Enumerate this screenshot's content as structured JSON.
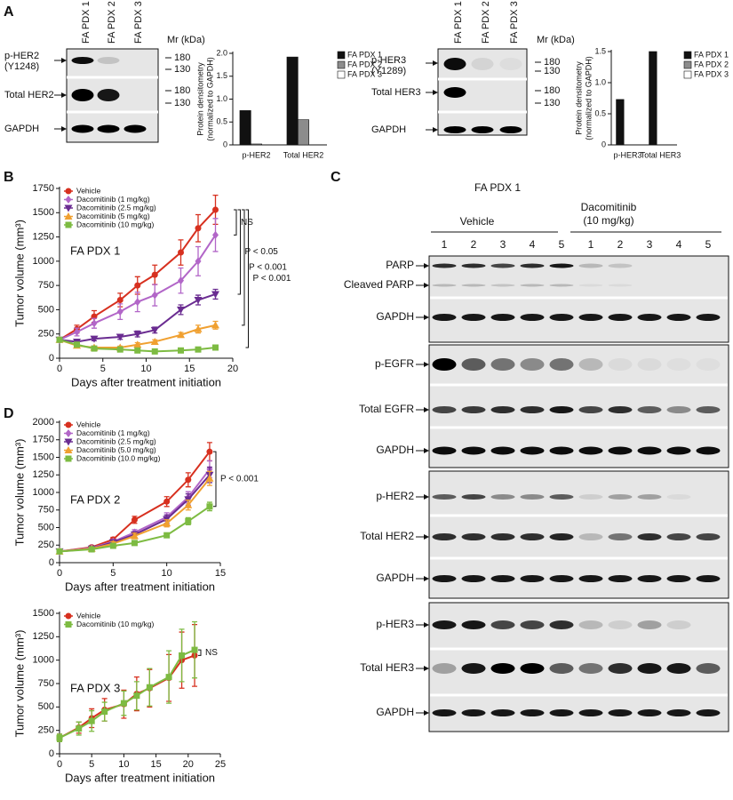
{
  "panel_labels": [
    "A",
    "B",
    "C",
    "D"
  ],
  "blots": {
    "a_left": {
      "lanes": [
        "FA PDX 1",
        "FA PDX 2",
        "FA PDX 3"
      ],
      "mr": "Mr (kDa)",
      "rows": [
        {
          "label": [
            "p-HER2",
            "(Y1248)"
          ],
          "markers": [
            180,
            130
          ]
        },
        {
          "label": [
            "Total HER2"
          ],
          "markers": [
            180,
            130
          ]
        },
        {
          "label": [
            "GAPDH"
          ]
        }
      ]
    },
    "a_right": {
      "lanes": [
        "FA PDX 1",
        "FA PDX 2",
        "FA PDX 3"
      ],
      "mr": "Mr (kDa)",
      "rows": [
        {
          "label": [
            "p-HER3",
            "(Y1289)"
          ],
          "markers": [
            180,
            130
          ]
        },
        {
          "label": [
            "Total HER3"
          ],
          "markers": [
            180,
            130
          ]
        },
        {
          "label": [
            "GAPDH"
          ]
        }
      ]
    },
    "c": {
      "title": "FA PDX 1",
      "groups": [
        {
          "label": [
            "Vehicle"
          ],
          "lanes": [
            1,
            2,
            3,
            4,
            5
          ]
        },
        {
          "label": [
            "Dacomitinib",
            "(10 mg/kg)"
          ],
          "lanes": [
            1,
            2,
            3,
            4,
            5
          ]
        }
      ],
      "rows": [
        "PARP",
        "Cleaved PARP",
        "GAPDH",
        "p-EGFR",
        "Total EGFR",
        "GAPDH",
        "p-HER2",
        "Total HER2",
        "GAPDH",
        "p-HER3",
        "Total HER3",
        "GAPDH"
      ]
    }
  },
  "chart_data": [
    {
      "type": "bar",
      "ylabel": [
        "Protein densitometry",
        "(normalized to GAPDH)"
      ],
      "categories": [
        "p-HER2",
        "Total HER2"
      ],
      "series": [
        {
          "name": "FA PDX 1",
          "color": "#111111",
          "values": [
            0.75,
            1.92
          ]
        },
        {
          "name": "FA PDX 2",
          "color": "#8c8c8c",
          "values": [
            0.02,
            0.55
          ]
        },
        {
          "name": "FA PDX 3",
          "color": "#ffffff",
          "values": [
            0,
            0
          ]
        }
      ],
      "ylim": [
        0,
        2
      ],
      "yticks": [
        0,
        0.5,
        {
          "value": 1,
          "label": "1.0"
        },
        1.5,
        {
          "value": 2,
          "label": "2.0"
        }
      ]
    },
    {
      "type": "bar",
      "ylabel": [
        "Protein densitometry",
        "(normalized to GAPDH)"
      ],
      "categories": [
        "p-HER3",
        "Total HER3"
      ],
      "series": [
        {
          "name": "FA PDX 1",
          "color": "#111111",
          "values": [
            0.73,
            1.5
          ]
        },
        {
          "name": "FA PDX 2",
          "color": "#8c8c8c",
          "values": [
            0,
            0
          ]
        },
        {
          "name": "FA PDX 3",
          "color": "#ffffff",
          "values": [
            0,
            0
          ]
        }
      ],
      "ylim": [
        0,
        1.5
      ],
      "yticks": [
        0,
        0.5,
        {
          "value": 1,
          "label": "1.0"
        },
        1.5
      ]
    },
    {
      "type": "line",
      "title": "FA PDX 1",
      "xlabel": "Days after treatment initiation",
      "ylabel": "Tumor volume (mm³)",
      "x": [
        0,
        2,
        4,
        7,
        9,
        11,
        14,
        16,
        18
      ],
      "series": [
        {
          "name": "Vehicle",
          "color": "#d7301f",
          "marker": "circle",
          "values": [
            190,
            300,
            430,
            600,
            750,
            860,
            1090,
            1340,
            1530
          ],
          "errors": [
            20,
            40,
            60,
            70,
            90,
            100,
            130,
            140,
            150
          ]
        },
        {
          "name": "Dacomitinib (1 mg/kg)",
          "color": "#b266c8",
          "marker": "diamond",
          "values": [
            190,
            270,
            360,
            480,
            580,
            650,
            800,
            1000,
            1270
          ],
          "errors": [
            20,
            40,
            50,
            80,
            100,
            110,
            130,
            150,
            170
          ]
        },
        {
          "name": "Dacomitinib (2.5 mg/kg)",
          "color": "#6a2c91",
          "marker": "triangle-down",
          "values": [
            190,
            170,
            200,
            220,
            250,
            290,
            500,
            600,
            660
          ],
          "errors": [
            15,
            20,
            20,
            25,
            30,
            30,
            50,
            50,
            50
          ]
        },
        {
          "name": "Dacomitinib (5 mg/kg)",
          "color": "#f0a030",
          "marker": "triangle-up",
          "values": [
            190,
            130,
            110,
            110,
            140,
            170,
            240,
            300,
            340
          ],
          "errors": [
            15,
            15,
            15,
            15,
            20,
            20,
            25,
            40,
            40
          ]
        },
        {
          "name": "Dacomitinib (10 mg/kg)",
          "color": "#7dbb42",
          "marker": "square",
          "values": [
            190,
            140,
            100,
            90,
            80,
            70,
            80,
            90,
            110
          ],
          "errors": [
            15,
            15,
            10,
            10,
            10,
            10,
            10,
            10,
            15
          ]
        }
      ],
      "annotations": [
        "NS",
        "P < 0.05",
        "P < 0.001",
        "P < 0.001"
      ],
      "xlim": [
        0,
        20
      ],
      "xticks": [
        0,
        5,
        10,
        15,
        20
      ],
      "ylim": [
        0,
        1750
      ],
      "yticks": [
        0,
        250,
        500,
        750,
        1000,
        1250,
        1500,
        1750
      ]
    },
    {
      "type": "line",
      "title": "FA PDX 2",
      "xlabel": "Days after treatment initiation",
      "ylabel": "Tumor volume (mm³)",
      "x": [
        0,
        3,
        5,
        7,
        10,
        12,
        14
      ],
      "series": [
        {
          "name": "Vehicle",
          "color": "#d7301f",
          "marker": "circle",
          "values": [
            160,
            220,
            330,
            610,
            870,
            1180,
            1580
          ],
          "errors": [
            10,
            20,
            30,
            50,
            70,
            100,
            130
          ]
        },
        {
          "name": "Dacomitinib (1 mg/kg)",
          "color": "#b266c8",
          "marker": "diamond",
          "values": [
            160,
            210,
            300,
            430,
            650,
            930,
            1330
          ],
          "errors": [
            10,
            20,
            30,
            40,
            60,
            80,
            120
          ]
        },
        {
          "name": "Dacomitinib (2.5 mg/kg)",
          "color": "#6a2c91",
          "marker": "triangle-down",
          "values": [
            160,
            200,
            290,
            400,
            620,
            900,
            1250
          ],
          "errors": [
            10,
            20,
            30,
            40,
            60,
            80,
            110
          ]
        },
        {
          "name": "Dacomitinib (5.0 mg/kg)",
          "color": "#f0a030",
          "marker": "triangle-up",
          "values": [
            160,
            200,
            270,
            380,
            560,
            820,
            1200
          ],
          "errors": [
            10,
            20,
            30,
            40,
            50,
            70,
            100
          ]
        },
        {
          "name": "Dacomitinib (10.0 mg/kg)",
          "color": "#7dbb42",
          "marker": "square",
          "values": [
            160,
            190,
            240,
            280,
            390,
            590,
            800
          ],
          "errors": [
            10,
            15,
            20,
            20,
            30,
            50,
            60
          ]
        }
      ],
      "annotations": [
        "P < 0.001"
      ],
      "xlim": [
        0,
        15
      ],
      "xticks": [
        0,
        5,
        10,
        15
      ],
      "ylim": [
        0,
        2000
      ],
      "yticks": [
        0,
        250,
        500,
        750,
        1000,
        1250,
        1500,
        1750,
        2000
      ]
    },
    {
      "type": "line",
      "title": "FA PDX 3",
      "xlabel": "Days after treatment initiation",
      "ylabel": "Tumor volume (mm³)",
      "x": [
        0,
        3,
        5,
        7,
        10,
        12,
        14,
        17,
        19,
        21
      ],
      "series": [
        {
          "name": "Vehicle",
          "color": "#d7301f",
          "marker": "circle",
          "values": [
            170,
            280,
            380,
            470,
            530,
            640,
            700,
            810,
            1000,
            1050
          ],
          "errors": [
            40,
            60,
            100,
            120,
            150,
            180,
            200,
            250,
            300,
            330
          ]
        },
        {
          "name": "Dacomitinib (10 mg/kg)",
          "color": "#7dbb42",
          "marker": "square",
          "values": [
            170,
            270,
            350,
            450,
            540,
            620,
            710,
            820,
            1050,
            1110
          ],
          "errors": [
            40,
            70,
            110,
            100,
            130,
            150,
            200,
            280,
            280,
            300
          ]
        }
      ],
      "annotations": [
        "NS"
      ],
      "xlim": [
        0,
        25
      ],
      "xticks": [
        0,
        5,
        10,
        15,
        20,
        25
      ],
      "ylim": [
        0,
        1500
      ],
      "yticks": [
        0,
        250,
        500,
        750,
        1000,
        1250,
        1500
      ]
    }
  ]
}
